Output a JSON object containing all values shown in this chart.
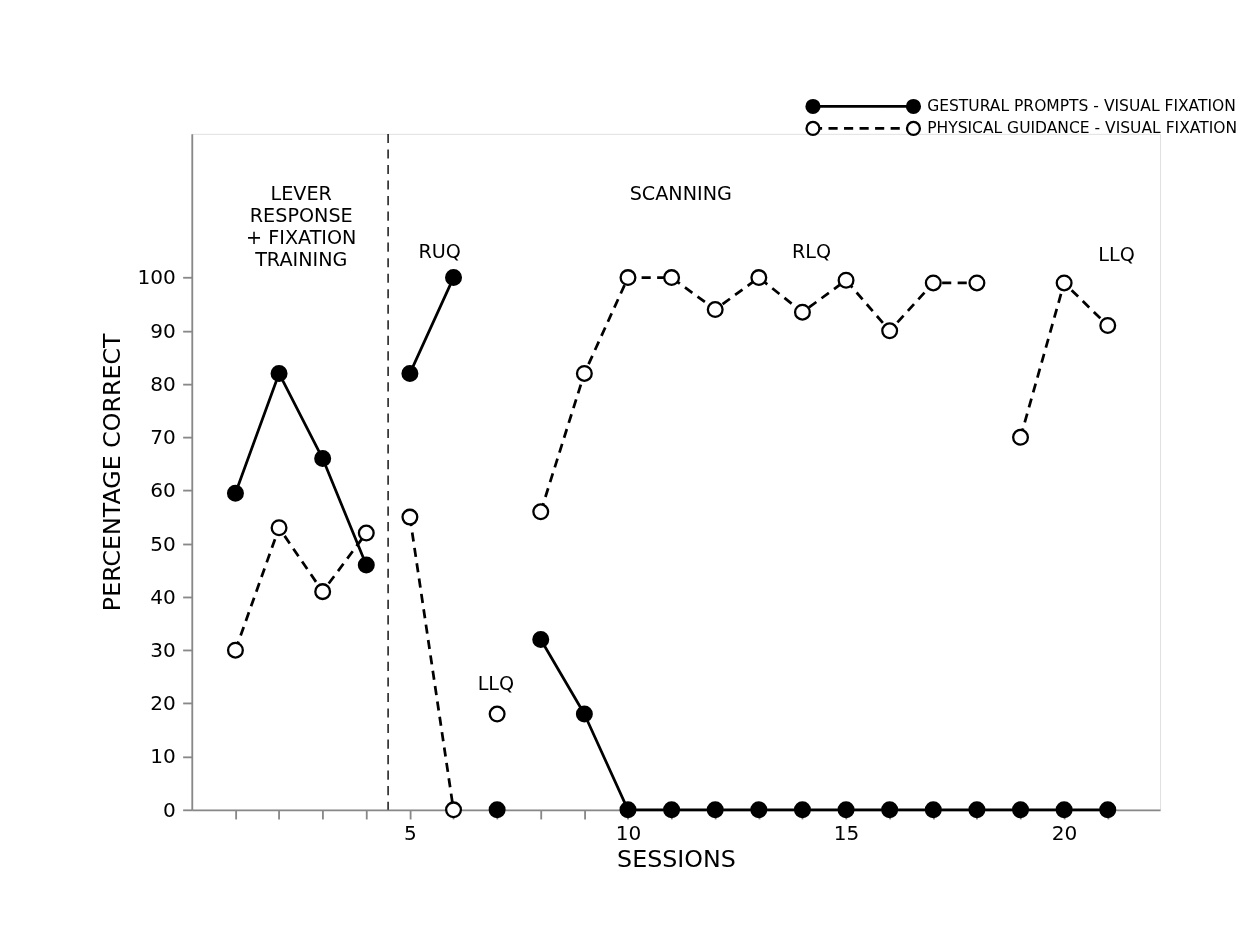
{
  "chart_data": {
    "type": "line",
    "xlabel": "SESSIONS",
    "ylabel": "PERCENTAGE CORRECT",
    "xlim": [
      0,
      22.2
    ],
    "ylim": [
      0,
      127
    ],
    "xticks": [
      {
        "value": 1,
        "label": null
      },
      {
        "value": 2,
        "label": null
      },
      {
        "value": 3,
        "label": null
      },
      {
        "value": 4,
        "label": null
      },
      5,
      {
        "value": 6,
        "label": null
      },
      {
        "value": 7,
        "label": null
      },
      {
        "value": 8,
        "label": null
      },
      {
        "value": 9,
        "label": null
      },
      10,
      {
        "value": 11,
        "label": null
      },
      {
        "value": 12,
        "label": null
      },
      {
        "value": 13,
        "label": null
      },
      {
        "value": 14,
        "label": null
      },
      15,
      {
        "value": 16,
        "label": null
      },
      {
        "value": 17,
        "label": null
      },
      {
        "value": 18,
        "label": null
      },
      {
        "value": 19,
        "label": null
      },
      20,
      {
        "value": 21,
        "label": null
      }
    ],
    "yticks": [
      0,
      10,
      20,
      30,
      40,
      50,
      60,
      70,
      80,
      90,
      100
    ],
    "series": [
      {
        "name": "GESTURAL PROMPTS - VISUAL FIXATION",
        "color": "#000000",
        "line_style": "solid",
        "x": [
          1,
          2,
          3,
          4,
          4.5,
          5,
          6,
          6.5,
          7,
          7.5,
          8,
          9,
          10,
          11,
          12,
          13,
          14,
          15,
          16,
          17,
          18,
          19,
          20,
          21
        ],
        "values": [
          59.5,
          82,
          66,
          46,
          null,
          82,
          100,
          null,
          0,
          null,
          32,
          18,
          0,
          0,
          0,
          0,
          0,
          0,
          0,
          0,
          0,
          0,
          0,
          0
        ]
      },
      {
        "name": "PHYSICAL GUIDANCE - VISUAL FIXATION",
        "color": "#ffffff",
        "line_style": "dashed",
        "x": [
          1,
          2,
          3,
          4,
          4.5,
          5,
          6,
          6.5,
          7,
          7.5,
          8,
          9,
          10,
          11,
          12,
          13,
          14,
          15,
          16,
          17,
          18,
          18.5,
          19,
          20,
          21
        ],
        "values": [
          30,
          53,
          41,
          52,
          null,
          55,
          0,
          null,
          18,
          null,
          56,
          82,
          100,
          100,
          94,
          100,
          93.5,
          99.5,
          90,
          99,
          99,
          null,
          70,
          99,
          91
        ]
      }
    ],
    "ref_lines": [
      {
        "axis": "x",
        "value": 4.5,
        "line_style": "dashed",
        "color": "#000000"
      }
    ],
    "annotations": [
      "LEVER\nRESPONSE\n+ FIXATION\nTRAINING",
      "SCANNING",
      "RUQ",
      "RLQ",
      "LLQ",
      "LLQ"
    ],
    "marker": "circle",
    "legend": "top right",
    "grid": false
  }
}
